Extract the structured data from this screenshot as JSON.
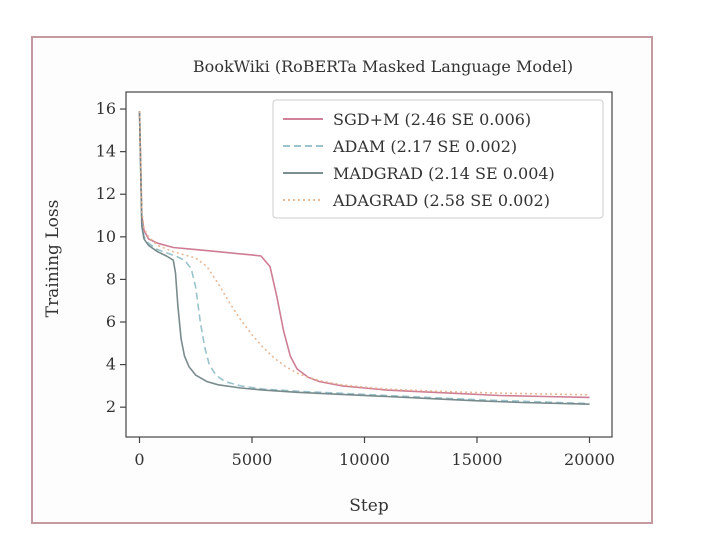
{
  "chart_data": {
    "type": "line",
    "title": "BookWiki (RoBERTa Masked Language Model)",
    "xlabel": "Step",
    "ylabel": "Training Loss",
    "xlim": [
      -600,
      21000
    ],
    "ylim": [
      0.6,
      16.8
    ],
    "xticks": [
      0,
      5000,
      10000,
      15000,
      20000
    ],
    "yticks": [
      2,
      4,
      6,
      8,
      10,
      12,
      14,
      16
    ],
    "legend_position": "top-right",
    "series": [
      {
        "name": "SGD+M (2.46 SE 0.006)",
        "color": "#c96f88",
        "dash": "solid",
        "x": [
          0,
          100,
          200,
          400,
          800,
          1500,
          2500,
          3500,
          4500,
          5000,
          5400,
          5800,
          6100,
          6400,
          6700,
          7000,
          7500,
          8000,
          9000,
          10000,
          11000,
          12000,
          14000,
          16000,
          18000,
          20000
        ],
        "y": [
          15.9,
          11.0,
          10.3,
          9.9,
          9.7,
          9.5,
          9.4,
          9.3,
          9.2,
          9.15,
          9.1,
          8.6,
          7.2,
          5.6,
          4.4,
          3.8,
          3.4,
          3.2,
          3.0,
          2.9,
          2.8,
          2.75,
          2.65,
          2.55,
          2.5,
          2.46
        ]
      },
      {
        "name": "ADAM (2.17 SE 0.002)",
        "color": "#8fbcc8",
        "dash": "dashed",
        "x": [
          0,
          100,
          200,
          400,
          800,
          1200,
          1600,
          2000,
          2300,
          2500,
          2700,
          2900,
          3100,
          3400,
          3800,
          4500,
          5500,
          7000,
          9000,
          11000,
          13000,
          15000,
          17000,
          20000
        ],
        "y": [
          15.9,
          10.8,
          10.0,
          9.7,
          9.4,
          9.25,
          9.1,
          8.9,
          8.5,
          7.6,
          6.0,
          4.8,
          4.0,
          3.5,
          3.2,
          3.0,
          2.85,
          2.75,
          2.65,
          2.55,
          2.45,
          2.35,
          2.28,
          2.17
        ]
      },
      {
        "name": "MADGRAD (2.14 SE 0.004)",
        "color": "#6a7e80",
        "dash": "solid",
        "x": [
          0,
          100,
          200,
          400,
          800,
          1200,
          1500,
          1600,
          1700,
          1850,
          2000,
          2200,
          2500,
          3000,
          3500,
          4500,
          5500,
          7000,
          9000,
          11000,
          13000,
          15000,
          17000,
          20000
        ],
        "y": [
          15.9,
          10.5,
          9.9,
          9.6,
          9.3,
          9.1,
          8.9,
          8.3,
          6.8,
          5.2,
          4.4,
          3.9,
          3.5,
          3.2,
          3.05,
          2.9,
          2.8,
          2.7,
          2.6,
          2.5,
          2.4,
          2.3,
          2.22,
          2.14
        ]
      },
      {
        "name": "ADAGRAD (2.58 SE 0.002)",
        "color": "#e6b089",
        "dash": "dotted",
        "x": [
          0,
          100,
          200,
          400,
          800,
          1500,
          2500,
          3000,
          3500,
          4000,
          4500,
          5000,
          5500,
          6000,
          6500,
          7000,
          7500,
          8000,
          9000,
          10000,
          11000,
          12000,
          14000,
          16000,
          18000,
          20000
        ],
        "y": [
          15.9,
          11.2,
          10.4,
          10.0,
          9.6,
          9.3,
          9.0,
          8.6,
          7.8,
          6.9,
          6.1,
          5.4,
          4.8,
          4.3,
          3.9,
          3.6,
          3.4,
          3.25,
          3.05,
          2.95,
          2.85,
          2.8,
          2.72,
          2.66,
          2.62,
          2.58
        ]
      }
    ]
  }
}
